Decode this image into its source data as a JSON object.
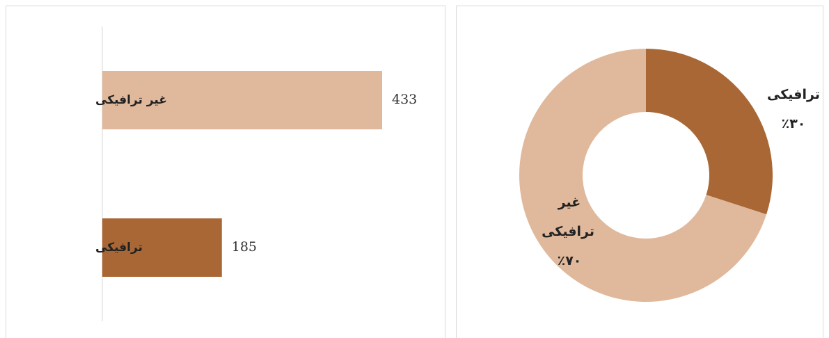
{
  "chart_data": [
    {
      "type": "bar",
      "orientation": "horizontal",
      "categories": [
        "غیر ترافیکی",
        "ترافیکی"
      ],
      "values": [
        433,
        185
      ],
      "colors": [
        "#e0b99c",
        "#a86734"
      ]
    },
    {
      "type": "donut",
      "categories": [
        "ترافیکی",
        "غیر ترافیکی"
      ],
      "values": [
        30,
        70
      ],
      "value_labels": [
        "٪۳۰",
        "٪۷۰"
      ],
      "colors": [
        "#a86734",
        "#e0b99c"
      ]
    }
  ]
}
